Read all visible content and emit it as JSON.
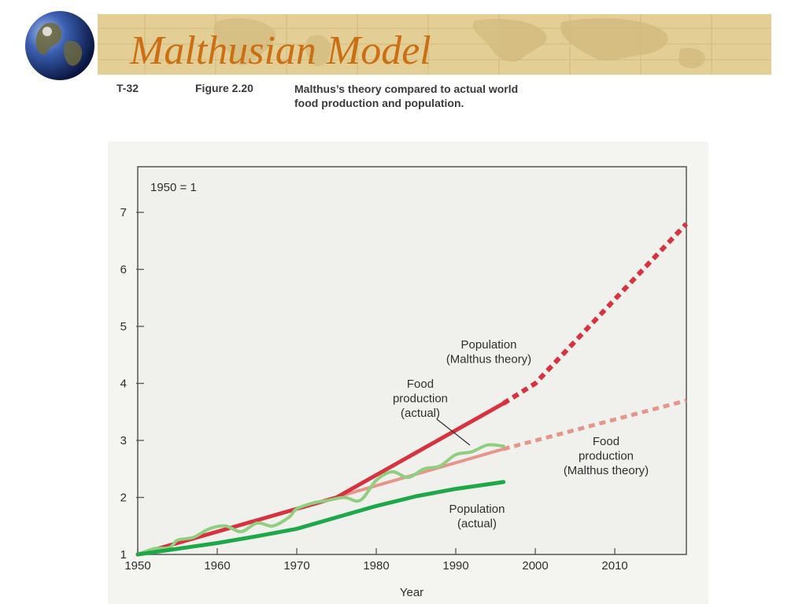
{
  "slide": {
    "title": "Malthusian Model",
    "figure_label": "T-32",
    "figure_number": "Figure 2.20",
    "caption_lines": [
      "Malthus’s theory compared to actual world",
      "food production and population."
    ]
  },
  "colors": {
    "banner": "#e3cf96",
    "title": "#cc6e12",
    "population_malthus": "#d8323f",
    "food_malthus": "#e59589",
    "population_actual": "#1fa84a",
    "food_actual": "#8fcf7f",
    "plot_bg": "#f0f0ed"
  },
  "icons": {
    "banner_icon": "globe-icon"
  },
  "chart_data": {
    "type": "line",
    "plot_note": "1950 = 1",
    "xlabel": "Year",
    "ylabel": "",
    "xlim": [
      1950,
      2019
    ],
    "ylim": [
      1,
      7.8
    ],
    "x_ticks": [
      1950,
      1960,
      1970,
      1980,
      1990,
      2000,
      2010
    ],
    "y_ticks": [
      1,
      2,
      3,
      4,
      5,
      6,
      7
    ],
    "grid": false,
    "legend": "none",
    "series": [
      {
        "key": "population_malthus",
        "label_lines": [
          "Population",
          "(Malthus theory)"
        ],
        "color": "#d8323f",
        "x": [
          1950,
          1975,
          1996
        ],
        "y": [
          1.0,
          2.0,
          3.65
        ],
        "projection": {
          "x": [
            1996,
            2000,
            2019
          ],
          "y": [
            3.65,
            4.0,
            6.8
          ]
        }
      },
      {
        "key": "food_malthus",
        "label_lines": [
          "Food",
          "production",
          "(Malthus theory)"
        ],
        "color": "#e59589",
        "x": [
          1950,
          1996
        ],
        "y": [
          1.0,
          2.85
        ],
        "projection": {
          "x": [
            1996,
            2019
          ],
          "y": [
            2.85,
            3.7
          ]
        }
      },
      {
        "key": "food_actual",
        "label_lines": [
          "Food",
          "production",
          "(actual)"
        ],
        "color": "#8fcf7f",
        "x": [
          1950,
          1952,
          1954,
          1955,
          1957,
          1959,
          1961,
          1963,
          1965,
          1967,
          1969,
          1970,
          1972,
          1974,
          1976,
          1978,
          1980,
          1982,
          1984,
          1986,
          1988,
          1990,
          1992,
          1994,
          1996
        ],
        "y": [
          1.0,
          1.1,
          1.12,
          1.25,
          1.3,
          1.45,
          1.5,
          1.4,
          1.55,
          1.5,
          1.65,
          1.8,
          1.9,
          1.95,
          2.0,
          1.95,
          2.3,
          2.45,
          2.35,
          2.5,
          2.55,
          2.75,
          2.8,
          2.92,
          2.9
        ]
      },
      {
        "key": "population_actual",
        "label_lines": [
          "Population",
          "(actual)"
        ],
        "color": "#1fa84a",
        "x": [
          1950,
          1955,
          1960,
          1965,
          1970,
          1975,
          1980,
          1985,
          1990,
          1996
        ],
        "y": [
          1.0,
          1.1,
          1.2,
          1.32,
          1.45,
          1.65,
          1.85,
          2.02,
          2.15,
          2.27
        ]
      }
    ]
  }
}
